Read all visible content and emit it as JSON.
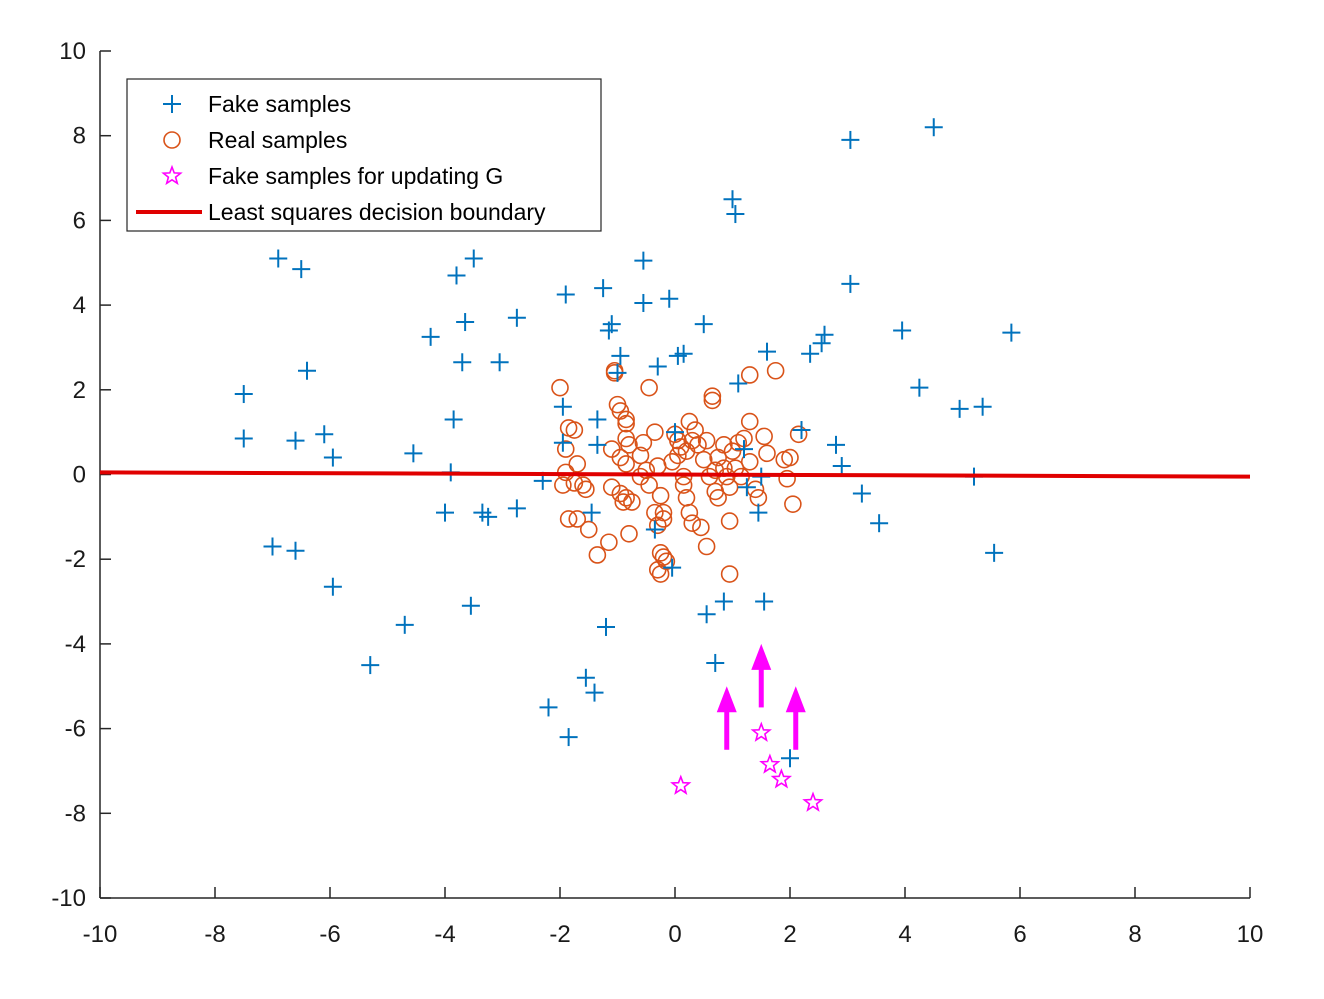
{
  "chart_data": {
    "type": "scatter",
    "title": "",
    "xlabel": "",
    "ylabel": "",
    "xlim": [
      -10,
      10
    ],
    "ylim": [
      -10,
      10
    ],
    "xticks": [
      -10,
      -8,
      -6,
      -4,
      -2,
      0,
      2,
      4,
      6,
      8,
      10
    ],
    "yticks": [
      -10,
      -8,
      -6,
      -4,
      -2,
      0,
      2,
      4,
      6,
      8,
      10
    ],
    "grid": false,
    "legend_position": "top-left",
    "colors": {
      "fake": "#0072BD",
      "real": "#D95319",
      "fake_update": "#FF00FF",
      "boundary": "#E00000",
      "arrow": "#FF00FF",
      "axis": "#262626"
    },
    "series": [
      {
        "name": "Fake samples",
        "marker": "plus",
        "points": [
          [
            -7.5,
            1.9
          ],
          [
            -7.5,
            0.85
          ],
          [
            -6.9,
            5.1
          ],
          [
            -6.5,
            4.85
          ],
          [
            -6.4,
            2.45
          ],
          [
            -6.6,
            0.8
          ],
          [
            -6.1,
            0.95
          ],
          [
            -5.95,
            0.4
          ],
          [
            -7.0,
            -1.7
          ],
          [
            -6.6,
            -1.8
          ],
          [
            -5.95,
            -2.65
          ],
          [
            -5.3,
            -4.5
          ],
          [
            -4.7,
            -3.55
          ],
          [
            -4.55,
            0.5
          ],
          [
            -4.25,
            3.25
          ],
          [
            -4.0,
            -0.9
          ],
          [
            -3.9,
            0.05
          ],
          [
            -3.85,
            1.3
          ],
          [
            -3.8,
            4.7
          ],
          [
            -3.7,
            2.65
          ],
          [
            -3.65,
            3.6
          ],
          [
            -3.5,
            5.1
          ],
          [
            -3.55,
            -3.1
          ],
          [
            -3.35,
            -0.9
          ],
          [
            -3.25,
            -1.0
          ],
          [
            -3.05,
            2.65
          ],
          [
            -2.75,
            3.7
          ],
          [
            -2.75,
            -0.8
          ],
          [
            -2.3,
            -0.15
          ],
          [
            -2.2,
            -5.5
          ],
          [
            -1.9,
            4.25
          ],
          [
            -1.95,
            1.6
          ],
          [
            -1.95,
            0.75
          ],
          [
            -1.85,
            -6.2
          ],
          [
            -1.55,
            -4.8
          ],
          [
            -1.45,
            -0.9
          ],
          [
            -1.35,
            0.7
          ],
          [
            -1.35,
            1.3
          ],
          [
            -1.4,
            -5.15
          ],
          [
            -1.25,
            4.4
          ],
          [
            -1.15,
            3.4
          ],
          [
            -1.1,
            3.55
          ],
          [
            -1.2,
            -3.6
          ],
          [
            -0.95,
            2.8
          ],
          [
            -1.0,
            2.4
          ],
          [
            -0.55,
            5.05
          ],
          [
            -0.55,
            4.05
          ],
          [
            -0.3,
            2.55
          ],
          [
            -0.1,
            4.15
          ],
          [
            0.05,
            2.8
          ],
          [
            0.15,
            2.85
          ],
          [
            -0.35,
            -1.3
          ],
          [
            -0.05,
            -2.2
          ],
          [
            0.0,
            1.0
          ],
          [
            0.5,
            3.55
          ],
          [
            0.55,
            -3.3
          ],
          [
            0.7,
            -4.45
          ],
          [
            0.85,
            -3.0
          ],
          [
            1.0,
            6.5
          ],
          [
            1.05,
            6.15
          ],
          [
            1.1,
            2.15
          ],
          [
            1.45,
            -0.9
          ],
          [
            1.5,
            -0.05
          ],
          [
            1.55,
            -3.0
          ],
          [
            1.6,
            2.9
          ],
          [
            1.2,
            0.6
          ],
          [
            1.25,
            -0.3
          ],
          [
            2.0,
            -6.7
          ],
          [
            2.2,
            1.05
          ],
          [
            2.35,
            2.85
          ],
          [
            2.55,
            3.1
          ],
          [
            2.6,
            3.3
          ],
          [
            2.8,
            0.7
          ],
          [
            2.9,
            0.2
          ],
          [
            3.05,
            7.9
          ],
          [
            3.05,
            4.5
          ],
          [
            3.25,
            -0.45
          ],
          [
            3.55,
            -1.15
          ],
          [
            3.95,
            3.4
          ],
          [
            4.25,
            2.05
          ],
          [
            4.5,
            8.2
          ],
          [
            4.95,
            1.55
          ],
          [
            5.2,
            -0.05
          ],
          [
            5.35,
            1.6
          ],
          [
            5.55,
            -1.85
          ],
          [
            5.85,
            3.35
          ]
        ]
      },
      {
        "name": "Real samples",
        "marker": "circle",
        "points": [
          [
            -2.0,
            2.05
          ],
          [
            -1.85,
            1.1
          ],
          [
            -1.75,
            1.05
          ],
          [
            -1.9,
            0.6
          ],
          [
            -1.7,
            0.25
          ],
          [
            -1.9,
            0.05
          ],
          [
            -1.95,
            -0.25
          ],
          [
            -1.75,
            -0.2
          ],
          [
            -1.55,
            -0.35
          ],
          [
            -1.6,
            -0.25
          ],
          [
            -1.85,
            -1.05
          ],
          [
            -1.7,
            -1.05
          ],
          [
            -1.5,
            -1.3
          ],
          [
            -1.35,
            -1.9
          ],
          [
            -1.15,
            -1.6
          ],
          [
            -1.05,
            2.45
          ],
          [
            -1.05,
            2.4
          ],
          [
            -1.0,
            1.65
          ],
          [
            -0.95,
            1.5
          ],
          [
            -0.85,
            1.3
          ],
          [
            -0.85,
            1.2
          ],
          [
            -0.85,
            0.85
          ],
          [
            -0.8,
            0.7
          ],
          [
            -1.1,
            0.6
          ],
          [
            -0.95,
            0.4
          ],
          [
            -0.85,
            0.25
          ],
          [
            -1.1,
            -0.3
          ],
          [
            -0.95,
            -0.45
          ],
          [
            -0.85,
            -0.55
          ],
          [
            -0.9,
            -0.65
          ],
          [
            -0.75,
            -0.65
          ],
          [
            -0.8,
            -1.4
          ],
          [
            -0.55,
            0.75
          ],
          [
            -0.6,
            0.45
          ],
          [
            -0.5,
            0.1
          ],
          [
            -0.45,
            -0.25
          ],
          [
            -0.45,
            2.05
          ],
          [
            -0.35,
            1.0
          ],
          [
            -0.3,
            0.2
          ],
          [
            -0.25,
            -0.5
          ],
          [
            -0.2,
            -0.9
          ],
          [
            -0.2,
            -1.05
          ],
          [
            -0.3,
            -1.2
          ],
          [
            -0.25,
            -1.85
          ],
          [
            -0.2,
            -1.95
          ],
          [
            -0.15,
            -2.05
          ],
          [
            -0.3,
            -2.25
          ],
          [
            -0.25,
            -2.35
          ],
          [
            0.0,
            0.95
          ],
          [
            0.05,
            0.8
          ],
          [
            0.1,
            0.65
          ],
          [
            0.2,
            0.55
          ],
          [
            0.25,
            1.25
          ],
          [
            0.35,
            1.05
          ],
          [
            0.3,
            0.8
          ],
          [
            0.4,
            0.7
          ],
          [
            0.15,
            -0.05
          ],
          [
            0.15,
            -0.25
          ],
          [
            0.2,
            -0.55
          ],
          [
            0.25,
            -0.9
          ],
          [
            0.3,
            -1.15
          ],
          [
            0.5,
            0.35
          ],
          [
            0.55,
            0.8
          ],
          [
            0.45,
            -1.25
          ],
          [
            0.55,
            -1.7
          ],
          [
            0.6,
            -0.05
          ],
          [
            0.7,
            -0.4
          ],
          [
            0.75,
            -0.55
          ],
          [
            0.85,
            0.15
          ],
          [
            0.9,
            -0.05
          ],
          [
            0.95,
            -0.3
          ],
          [
            0.95,
            -1.1
          ],
          [
            0.95,
            -2.35
          ],
          [
            0.65,
            1.75
          ],
          [
            0.65,
            1.85
          ],
          [
            0.75,
            0.4
          ],
          [
            0.85,
            0.7
          ],
          [
            1.0,
            0.55
          ],
          [
            1.05,
            0.15
          ],
          [
            1.1,
            0.75
          ],
          [
            1.2,
            0.85
          ],
          [
            1.3,
            0.3
          ],
          [
            1.3,
            1.25
          ],
          [
            1.3,
            2.35
          ],
          [
            1.4,
            -0.35
          ],
          [
            1.45,
            -0.55
          ],
          [
            1.55,
            0.9
          ],
          [
            1.6,
            0.5
          ],
          [
            1.75,
            2.45
          ],
          [
            1.9,
            0.35
          ],
          [
            2.0,
            0.4
          ],
          [
            1.95,
            -0.1
          ],
          [
            2.05,
            -0.7
          ],
          [
            2.15,
            0.95
          ],
          [
            0.05,
            0.45
          ],
          [
            -0.6,
            -0.05
          ],
          [
            -0.35,
            -0.9
          ],
          [
            -0.05,
            0.3
          ],
          [
            1.15,
            -0.05
          ],
          [
            0.7,
            0.1
          ]
        ]
      },
      {
        "name": "Fake samples for updating G",
        "marker": "star",
        "points": [
          [
            0.1,
            -7.35
          ],
          [
            1.5,
            -6.1
          ],
          [
            1.65,
            -6.85
          ],
          [
            1.85,
            -7.2
          ],
          [
            2.4,
            -7.75
          ]
        ]
      },
      {
        "name": "Least squares decision boundary",
        "marker": "line",
        "points": [
          [
            -10,
            0.05
          ],
          [
            10,
            -0.05
          ]
        ]
      }
    ],
    "annotations": {
      "arrows": [
        {
          "x": 0.9,
          "y_from": -6.5,
          "y_to": -5.0
        },
        {
          "x": 1.5,
          "y_from": -5.5,
          "y_to": -4.0
        },
        {
          "x": 2.1,
          "y_from": -6.5,
          "y_to": -5.0
        }
      ]
    }
  }
}
